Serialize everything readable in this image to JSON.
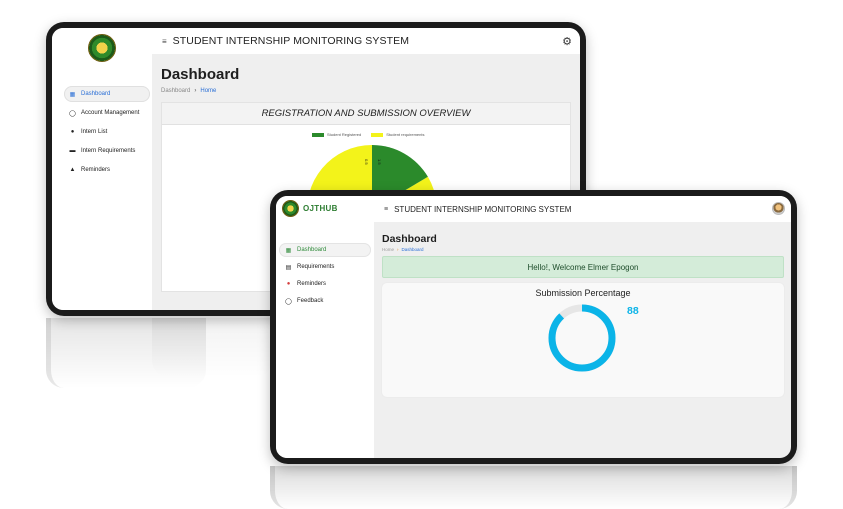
{
  "back_screen": {
    "header": {
      "system_title": "STUDENT INTERNSHIP MONITORING SYSTEM",
      "settings_icon": "gear-icon"
    },
    "sidebar": {
      "items": [
        {
          "label": "Dashboard",
          "icon": "grid-icon",
          "active": true
        },
        {
          "label": "Account Management",
          "icon": "circle-icon",
          "active": false
        },
        {
          "label": "Intern List",
          "icon": "user-icon",
          "active": false
        },
        {
          "label": "Intern Requirements",
          "icon": "document-icon",
          "active": false
        },
        {
          "label": "Reminders",
          "icon": "bell-icon",
          "active": false
        }
      ]
    },
    "page": {
      "title": "Dashboard",
      "breadcrumb": {
        "root": "Dashboard",
        "current": "Home"
      }
    },
    "card": {
      "title": "REGISTRATION AND SUBMISSION OVERVIEW"
    },
    "chart_data": {
      "type": "pie",
      "title": "REGISTRATION AND SUBMISSION OVERVIEW",
      "categories": [
        "Student Registered",
        "Student requirements"
      ],
      "colors": [
        "#2b8a2b",
        "#f3f31a"
      ],
      "slice_labels": [
        "1.5",
        "0.5"
      ]
    }
  },
  "front_screen": {
    "brand": {
      "name": "OJTHUB"
    },
    "header": {
      "system_title": "STUDENT INTERNSHIP MONITORING SYSTEM",
      "avatar_icon": "user-avatar"
    },
    "sidebar": {
      "items": [
        {
          "label": "Dashboard",
          "icon": "grid-icon",
          "active": true
        },
        {
          "label": "Requirements",
          "icon": "document-icon",
          "active": false
        },
        {
          "label": "Reminders",
          "icon": "pin-icon",
          "active": false
        },
        {
          "label": "Feedback",
          "icon": "circle-icon",
          "active": false
        }
      ]
    },
    "page": {
      "title": "Dashboard",
      "breadcrumb": {
        "root": "Home",
        "current": "Dashboard"
      }
    },
    "welcome_message": "Hello!, Welcome Elmer Epogon",
    "submission": {
      "title": "Submission Percentage",
      "value": "88",
      "percent": 88,
      "ring_color": "#0bb4e8",
      "track_color": "#e6e6e6"
    }
  }
}
